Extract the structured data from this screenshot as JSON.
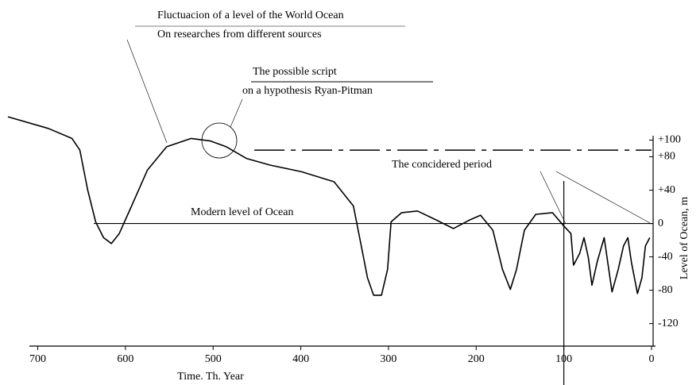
{
  "chart_data": {
    "type": "line",
    "annotations": [
      "Fluctuacion of a level of the World Ocean",
      "On researches from different sources"
    ],
    "xlabel": "Time. Th. Year",
    "ylabel": "Level of Ocean, m",
    "reference_label": "Modern level of Ocean",
    "x": [
      734,
      688,
      661,
      652,
      643,
      634,
      625,
      616,
      607,
      593,
      575,
      553,
      525,
      503,
      485,
      462,
      435,
      399,
      362,
      340,
      331,
      324,
      317,
      308,
      301,
      297,
      285,
      267,
      245,
      226,
      208,
      195,
      181,
      170,
      161,
      154,
      145,
      132,
      113,
      100,
      92,
      89,
      82,
      77,
      72,
      68,
      62,
      54,
      50,
      45,
      38,
      32,
      27,
      23,
      16,
      11,
      7,
      2
    ],
    "values": [
      128,
      114,
      102,
      88,
      40,
      2,
      -17,
      -24,
      -12,
      21,
      64,
      92,
      102,
      99,
      92,
      78,
      70,
      62,
      50,
      21,
      -27,
      -65,
      -86,
      -86,
      -55,
      2,
      13,
      15,
      4,
      -6,
      4,
      10,
      -8,
      -55,
      -79,
      -55,
      -8,
      11,
      13,
      -3,
      -12,
      -50,
      -36,
      -17,
      -41,
      -74,
      -46,
      -17,
      -46,
      -82,
      -55,
      -27,
      -17,
      -46,
      -84,
      -65,
      -27,
      -17
    ],
    "color": "#000000",
    "hypothesis": {
      "labels": [
        "The possible script",
        "on a hypothesis Ryan-Pitman"
      ],
      "x": [
        453,
        0
      ],
      "values": [
        88,
        88
      ]
    },
    "period": {
      "label": "The concidered period",
      "start": 100
    },
    "xlim": [
      734,
      0
    ],
    "ylim": [
      -147,
      110
    ],
    "xticks": [
      700,
      600,
      500,
      400,
      300,
      200,
      100,
      0
    ],
    "yticks": [
      {
        "value": 100,
        "label": "+100"
      },
      {
        "value": 80,
        "label": "+80"
      },
      {
        "value": 40,
        "label": "+40"
      },
      0,
      -40,
      -80,
      -120
    ]
  }
}
